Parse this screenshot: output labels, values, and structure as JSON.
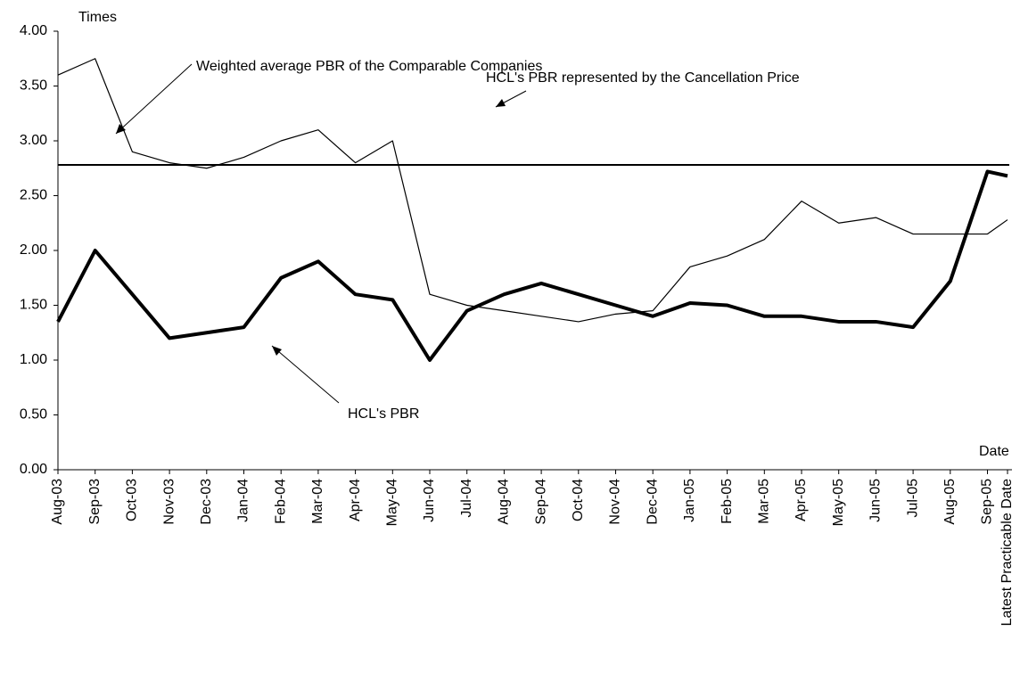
{
  "chart_data": {
    "type": "line",
    "y_axis_label": "Times",
    "x_axis_label": "Date",
    "categories": [
      "Aug-03",
      "Sep-03",
      "Oct-03",
      "Nov-03",
      "Dec-03",
      "Jan-04",
      "Feb-04",
      "Mar-04",
      "Apr-04",
      "May-04",
      "Jun-04",
      "Jul-04",
      "Aug-04",
      "Sep-04",
      "Oct-04",
      "Nov-04",
      "Dec-04",
      "Jan-05",
      "Feb-05",
      "Mar-05",
      "Apr-05",
      "May-05",
      "Jun-05",
      "Jul-05",
      "Aug-05",
      "Sep-05",
      "Latest Practicable Date"
    ],
    "series": [
      {
        "name": "Weighted average PBR of the Comparable Companies",
        "color": "#000000",
        "values": [
          3.6,
          3.75,
          2.9,
          2.8,
          2.75,
          2.85,
          3.0,
          3.1,
          2.8,
          3.0,
          1.6,
          1.5,
          1.45,
          1.4,
          1.35,
          1.42,
          1.45,
          1.85,
          1.95,
          2.1,
          2.45,
          2.25,
          2.3,
          2.15,
          2.15,
          2.15,
          2.28
        ]
      },
      {
        "name": "HCL's PBR",
        "color": "#000000",
        "values": [
          1.35,
          2.0,
          1.6,
          1.2,
          1.25,
          1.3,
          1.75,
          1.9,
          1.6,
          1.55,
          1.0,
          1.45,
          1.6,
          1.7,
          1.6,
          1.5,
          1.4,
          1.52,
          1.5,
          1.4,
          1.4,
          1.35,
          1.35,
          1.3,
          1.72,
          2.72,
          2.68
        ]
      }
    ],
    "reference_lines": [
      {
        "label": "HCL's PBR represented by the Cancellation Price",
        "value": 2.78
      }
    ],
    "ylim": [
      0,
      4
    ],
    "yticks": [
      {
        "value": 0,
        "label": "0.00"
      },
      {
        "value": 0.5,
        "label": "0.50"
      },
      {
        "value": 1,
        "label": "1.00"
      },
      {
        "value": 1.5,
        "label": "1.50"
      },
      {
        "value": 2,
        "label": "2.00"
      },
      {
        "value": 2.5,
        "label": "2.50"
      },
      {
        "value": 3,
        "label": "3.00"
      },
      {
        "value": 3.5,
        "label": "3.50"
      },
      {
        "value": 4,
        "label": "4.00"
      }
    ],
    "grid": false
  }
}
